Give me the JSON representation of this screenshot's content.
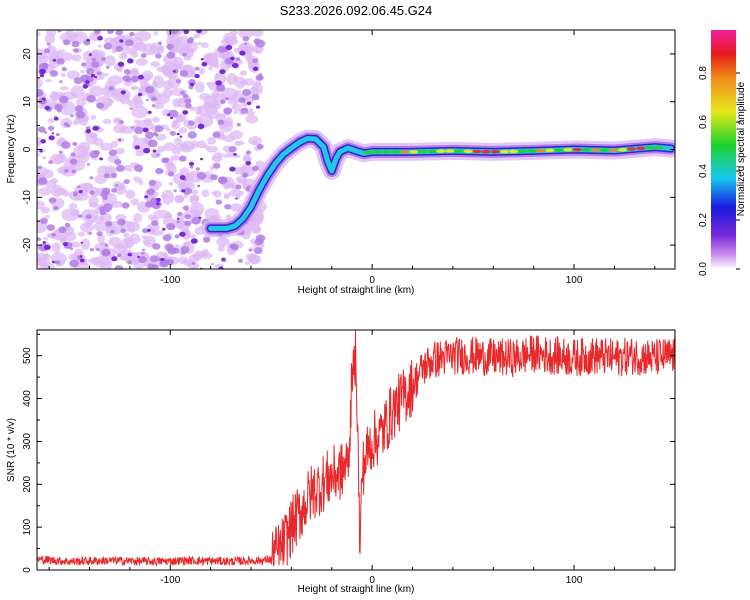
{
  "title": "S233.2026.092.06.45.G24",
  "colors": {
    "trace": "#e8282a",
    "noise_light": "#ddb8f4",
    "noise_mid": "#b07ee6",
    "noise_dark": "#7a2ad8",
    "ridge_edge": "#3a1fcf",
    "ridge_mid": "#20c8e6",
    "ridge_core": "#e23232",
    "axis": "#000000"
  },
  "colorbar": {
    "label": "Normalized spectral amplitude",
    "ticks": [
      "0.0",
      "0.2",
      "0.4",
      "0.6",
      "0.8"
    ]
  },
  "chart_data": [
    {
      "type": "heatmap",
      "name": "spectrogram",
      "title": "S233.2026.092.06.45.G24",
      "xlabel": "Height of straight line (km)",
      "ylabel": "Frequency (Hz)",
      "xlim": [
        -166,
        150
      ],
      "ylim": [
        -25,
        25
      ],
      "xticks": [
        "-100",
        "0",
        "100"
      ],
      "yticks": [
        "-20",
        "-10",
        "0",
        "10",
        "20"
      ],
      "noise_region_x": [
        -166,
        -55
      ],
      "ridge": {
        "x": [
          -80,
          -76,
          -72,
          -68,
          -64,
          -60,
          -56,
          -52,
          -48,
          -44,
          -40,
          -36,
          -32,
          -28,
          -24,
          -22,
          -20,
          -18,
          -16,
          -12,
          -8,
          -4,
          0,
          10,
          20,
          40,
          60,
          80,
          100,
          120,
          140,
          148
        ],
        "y": [
          -16.5,
          -16.5,
          -16.5,
          -16,
          -14.5,
          -12,
          -8.5,
          -5.5,
          -3,
          -1,
          0.3,
          1.5,
          2.3,
          2.2,
          0.5,
          -2.5,
          -4.5,
          -2,
          -0.5,
          0.3,
          -0.3,
          -0.8,
          -0.5,
          -0.5,
          -0.5,
          -0.3,
          -0.5,
          -0.3,
          0,
          -0.2,
          0.5,
          0.2
        ]
      }
    },
    {
      "type": "line",
      "name": "snr",
      "xlabel": "Height of straight line (km)",
      "ylabel": "SNR (10 * v/v)",
      "xlim": [
        -166,
        150
      ],
      "ylim": [
        0,
        560
      ],
      "xticks": [
        "-100",
        "0",
        "100"
      ],
      "yticks": [
        "0",
        "100",
        "200",
        "300",
        "400",
        "500"
      ],
      "series": [
        {
          "name": "SNR",
          "x": [
            -166,
            -150,
            -130,
            -110,
            -90,
            -70,
            -60,
            -55,
            -50,
            -45,
            -40,
            -35,
            -30,
            -25,
            -20,
            -15,
            -12,
            -10,
            -8,
            -6,
            -5,
            -2,
            0,
            5,
            10,
            15,
            20,
            25,
            30,
            40,
            50,
            60,
            70,
            80,
            90,
            100,
            110,
            120,
            130,
            140,
            150
          ],
          "values": [
            25,
            20,
            22,
            20,
            22,
            20,
            22,
            22,
            25,
            50,
            100,
            140,
            180,
            200,
            220,
            230,
            250,
            420,
            520,
            40,
            230,
            280,
            300,
            320,
            370,
            400,
            430,
            470,
            490,
            500,
            500,
            495,
            495,
            505,
            500,
            495,
            500,
            495,
            500,
            495,
            500
          ]
        }
      ]
    }
  ]
}
